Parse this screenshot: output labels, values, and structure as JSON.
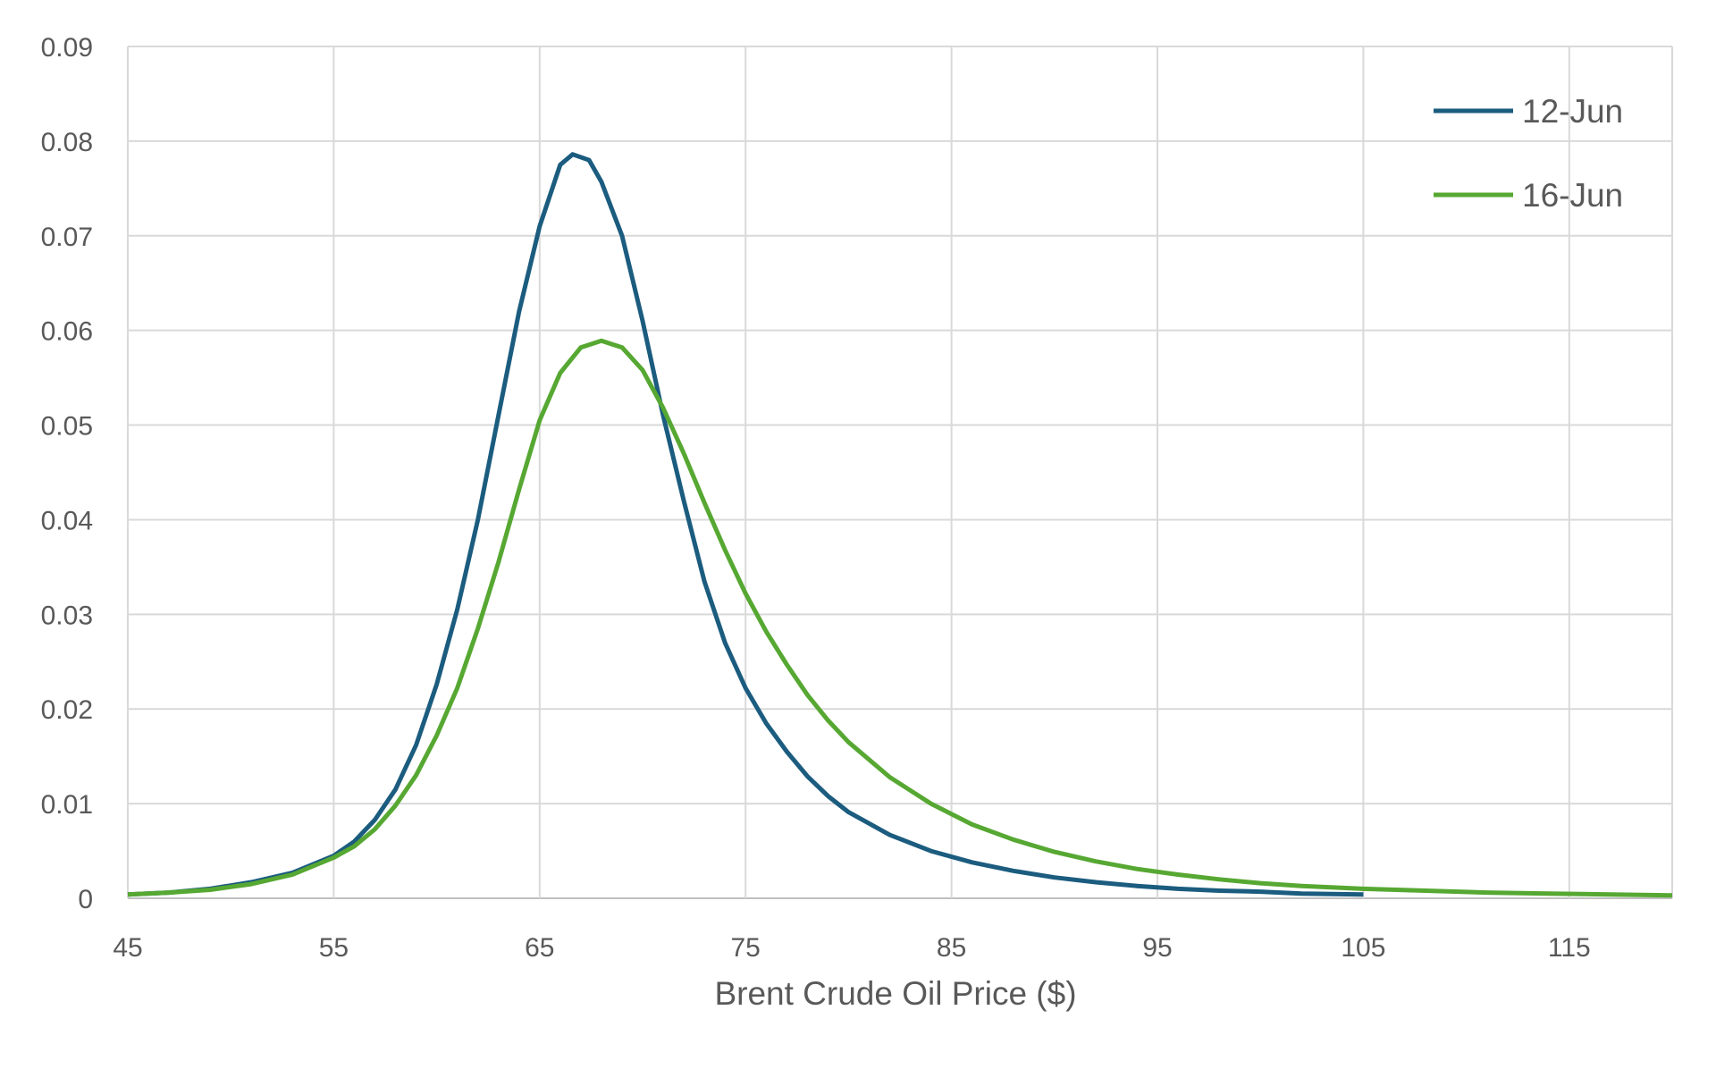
{
  "chart_data": {
    "type": "line",
    "title": "",
    "xlabel": "Brent Crude Oil Price ($)",
    "ylabel": "",
    "xlim": [
      45,
      120
    ],
    "ylim": [
      0,
      0.09
    ],
    "x_ticks": [
      "45",
      "55",
      "65",
      "75",
      "85",
      "95",
      "105",
      "115"
    ],
    "y_ticks": [
      "0",
      "0.01",
      "0.02",
      "0.03",
      "0.04",
      "0.05",
      "0.06",
      "0.07",
      "0.08",
      "0.09"
    ],
    "grid": true,
    "legend_position": "top-right",
    "series": [
      {
        "name": "12-Jun",
        "color": "#1b5c7f",
        "points": [
          [
            45,
            0.0004
          ],
          [
            47,
            0.0006
          ],
          [
            49,
            0.001
          ],
          [
            51,
            0.0017
          ],
          [
            53,
            0.0027
          ],
          [
            55,
            0.0045
          ],
          [
            56,
            0.006
          ],
          [
            57,
            0.0083
          ],
          [
            58,
            0.0115
          ],
          [
            59,
            0.0162
          ],
          [
            60,
            0.0226
          ],
          [
            61,
            0.0305
          ],
          [
            62,
            0.04
          ],
          [
            63,
            0.051
          ],
          [
            64,
            0.062
          ],
          [
            65,
            0.071
          ],
          [
            66,
            0.0775
          ],
          [
            66.6,
            0.0786
          ],
          [
            67.4,
            0.078
          ],
          [
            68,
            0.0757
          ],
          [
            69,
            0.07
          ],
          [
            70,
            0.061
          ],
          [
            71,
            0.051
          ],
          [
            72,
            0.042
          ],
          [
            73,
            0.0335
          ],
          [
            74,
            0.027
          ],
          [
            75,
            0.0222
          ],
          [
            76,
            0.0185
          ],
          [
            77,
            0.0155
          ],
          [
            78,
            0.0129
          ],
          [
            79,
            0.0108
          ],
          [
            80,
            0.0091
          ],
          [
            82,
            0.0067
          ],
          [
            84,
            0.005
          ],
          [
            86,
            0.0038
          ],
          [
            88,
            0.0029
          ],
          [
            90,
            0.0022
          ],
          [
            92,
            0.0017
          ],
          [
            94,
            0.0013
          ],
          [
            96,
            0.001
          ],
          [
            98,
            0.0008
          ],
          [
            100,
            0.0007
          ],
          [
            102,
            0.0005
          ],
          [
            105,
            0.0004
          ]
        ]
      },
      {
        "name": "16-Jun",
        "color": "#56a832",
        "points": [
          [
            45,
            0.0004
          ],
          [
            47,
            0.0006
          ],
          [
            49,
            0.0009
          ],
          [
            51,
            0.0015
          ],
          [
            53,
            0.0025
          ],
          [
            55,
            0.0043
          ],
          [
            56,
            0.0055
          ],
          [
            57,
            0.0073
          ],
          [
            58,
            0.0098
          ],
          [
            59,
            0.013
          ],
          [
            60,
            0.0172
          ],
          [
            61,
            0.0222
          ],
          [
            62,
            0.0285
          ],
          [
            63,
            0.0355
          ],
          [
            64,
            0.0432
          ],
          [
            65,
            0.0505
          ],
          [
            66,
            0.0555
          ],
          [
            67,
            0.0582
          ],
          [
            68,
            0.0589
          ],
          [
            69,
            0.0582
          ],
          [
            70,
            0.0558
          ],
          [
            71,
            0.0518
          ],
          [
            72,
            0.047
          ],
          [
            73,
            0.0418
          ],
          [
            74,
            0.0368
          ],
          [
            75,
            0.0322
          ],
          [
            76,
            0.0282
          ],
          [
            77,
            0.0247
          ],
          [
            78,
            0.0215
          ],
          [
            79,
            0.0188
          ],
          [
            80,
            0.0165
          ],
          [
            82,
            0.0128
          ],
          [
            84,
            0.01
          ],
          [
            86,
            0.0078
          ],
          [
            88,
            0.0062
          ],
          [
            90,
            0.0049
          ],
          [
            92,
            0.0039
          ],
          [
            94,
            0.0031
          ],
          [
            96,
            0.0025
          ],
          [
            98,
            0.002
          ],
          [
            100,
            0.0016
          ],
          [
            102,
            0.0013
          ],
          [
            105,
            0.001
          ],
          [
            108,
            0.0008
          ],
          [
            111,
            0.0006
          ],
          [
            114,
            0.0005
          ],
          [
            117,
            0.0004
          ],
          [
            120,
            0.0003
          ]
        ]
      }
    ]
  }
}
